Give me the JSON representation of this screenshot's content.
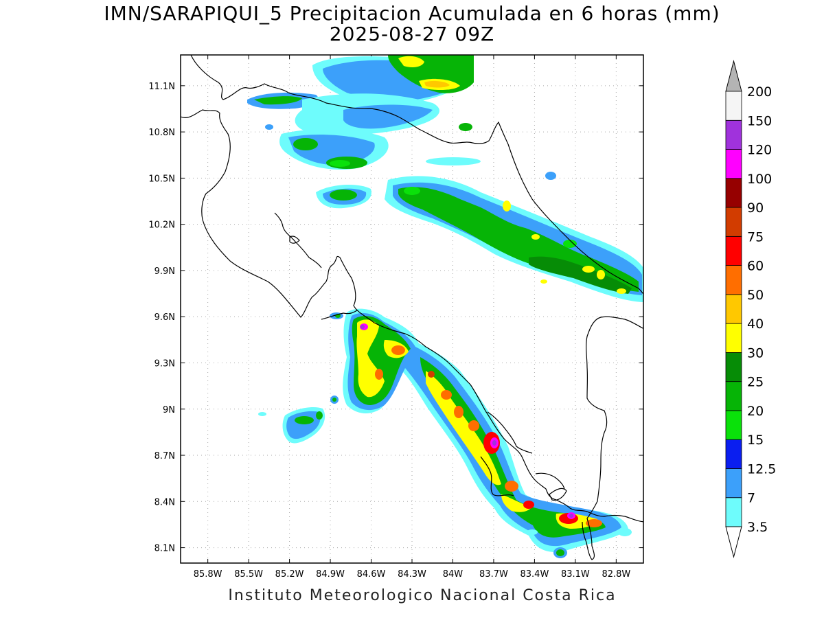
{
  "title": "IMN/SARAPIQUI_5 Precipitacion Acumulada en 6 horas (mm)",
  "subtitle": "2025-08-27 09Z",
  "footer": "Instituto Meteorologico Nacional Costa Rica",
  "map": {
    "lon_range": [
      -86.0,
      -82.6
    ],
    "lat_range": [
      8.0,
      11.3
    ],
    "lon_ticks": [
      "85.8W",
      "85.5W",
      "85.2W",
      "84.9W",
      "84.6W",
      "84.3W",
      "84W",
      "83.7W",
      "83.4W",
      "83.1W",
      "82.8W"
    ],
    "lat_ticks": [
      "8.1N",
      "8.4N",
      "8.7N",
      "9N",
      "9.3N",
      "9.6N",
      "9.9N",
      "10.2N",
      "10.5N",
      "10.8N",
      "11.1N"
    ]
  },
  "colorbar": {
    "levels": [
      "3.5",
      "7",
      "12.5",
      "15",
      "20",
      "25",
      "30",
      "40",
      "50",
      "60",
      "75",
      "90",
      "100",
      "120",
      "150",
      "200"
    ],
    "colors": [
      "#6efcfc",
      "#3ca0fa",
      "#0a1ef0",
      "#0ae10a",
      "#06b406",
      "#068c06",
      "#ffff00",
      "#ffc800",
      "#ff6e00",
      "#ff0000",
      "#d23c00",
      "#960000",
      "#ff00ff",
      "#a032dc",
      "#f5f5f5"
    ],
    "cap_top_color": "#b4b4b4",
    "cap_bottom_color": "#ffffff"
  }
}
